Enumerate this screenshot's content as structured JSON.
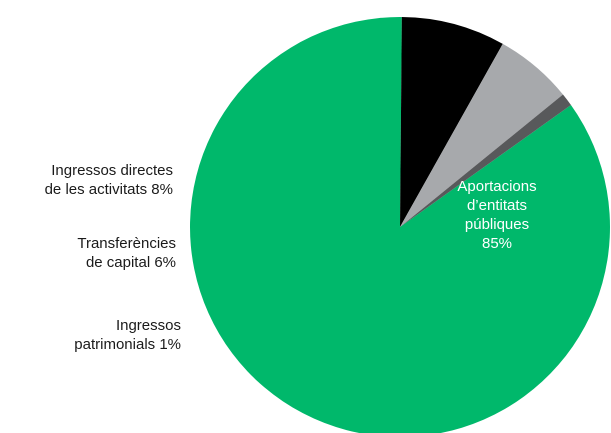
{
  "chart_data": {
    "type": "pie",
    "title": "",
    "slices": [
      {
        "label_lines": [
          "Aportacions",
          "d’entitats",
          "públiques",
          "85%"
        ],
        "value": 85,
        "color": "#00b86b"
      },
      {
        "label_lines": [
          "Ingressos directes",
          "de les activitats 8%"
        ],
        "value": 8,
        "color": "#000000"
      },
      {
        "label_lines": [
          "Transferències",
          "de capital 6%"
        ],
        "value": 6,
        "color": "#a7a9ac"
      },
      {
        "label_lines": [
          "Ingressos",
          "patrimonials 1%"
        ],
        "value": 1,
        "color": "#58595b"
      }
    ]
  }
}
